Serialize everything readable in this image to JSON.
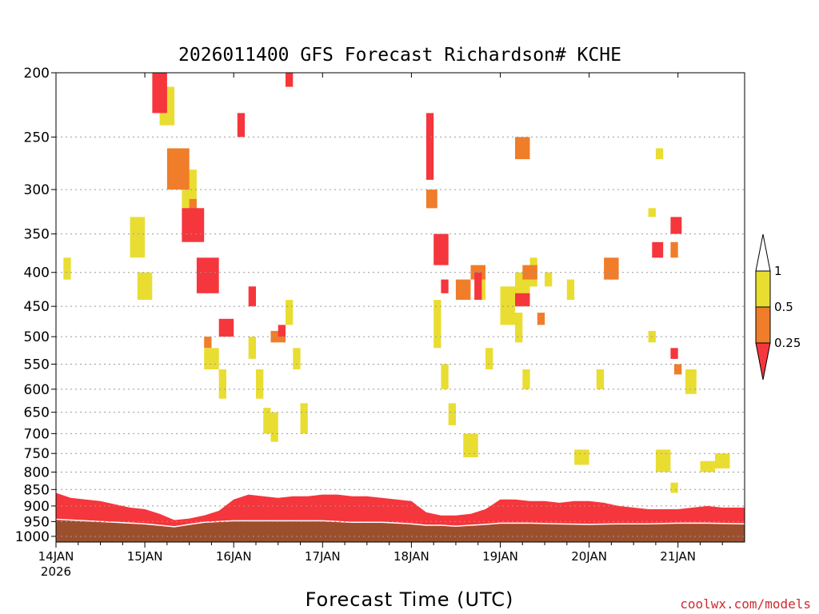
{
  "colors": {
    "ri_below_0_25": "#f5363c",
    "ri_0_25_to_0_5": "#f07d2a",
    "ri_0_5_to_1": "#e9dd32",
    "ri_above_1": "#ffffff",
    "ground": "#9c4f2c",
    "grid": "#999999"
  },
  "chart_data": {
    "type": "heatmap",
    "title": "2026011400 GFS Forecast Richardson# KCHE",
    "xlabel": "Forecast Time (UTC)",
    "x_ticks": [
      {
        "label": "14JAN",
        "sublabel": "2026",
        "hour": 0
      },
      {
        "label": "15JAN",
        "hour": 24
      },
      {
        "label": "16JAN",
        "hour": 48
      },
      {
        "label": "17JAN",
        "hour": 72
      },
      {
        "label": "18JAN",
        "hour": 96
      },
      {
        "label": "19JAN",
        "hour": 120
      },
      {
        "label": "20JAN",
        "hour": 144
      },
      {
        "label": "21JAN",
        "hour": 168
      }
    ],
    "xlim_hours": [
      0,
      186
    ],
    "y_ticks": [
      200,
      250,
      300,
      350,
      400,
      450,
      500,
      550,
      600,
      650,
      700,
      750,
      800,
      850,
      900,
      950,
      1000
    ],
    "y_unit": "hPa",
    "ylim": [
      200,
      1020
    ],
    "y_scale": "log",
    "grid": "dotted horizontal lines",
    "legend": {
      "position": "right",
      "levels": [
        "0.25",
        "0.5",
        "1"
      ]
    },
    "regions": [
      {
        "cls": "high",
        "from": [
          200,
          260
        ],
        "to": [
          230,
          170
        ]
      },
      {
        "cls": "high",
        "from": [
          250,
          290
        ],
        "to": [
          300,
          160
        ]
      },
      {
        "cls": "high",
        "from": [
          200,
          250
        ],
        "to": [
          280,
          240
        ]
      }
    ],
    "red_blocks": [
      [
        26,
        30,
        200,
        230
      ],
      [
        34,
        40,
        320,
        360
      ],
      [
        38,
        44,
        380,
        430
      ],
      [
        44,
        48,
        470,
        500
      ],
      [
        49,
        51,
        230,
        250
      ],
      [
        52,
        54,
        420,
        450
      ],
      [
        62,
        64,
        200,
        210
      ],
      [
        60,
        62,
        480,
        500
      ],
      [
        100,
        102,
        230,
        290
      ],
      [
        102,
        106,
        350,
        390
      ],
      [
        104,
        106,
        410,
        430
      ],
      [
        113,
        115,
        400,
        440
      ],
      [
        124,
        128,
        430,
        450
      ],
      [
        161,
        164,
        360,
        380
      ],
      [
        166,
        169,
        330,
        350
      ],
      [
        166,
        168,
        520,
        540
      ]
    ],
    "orange_blocks": [
      [
        30,
        36,
        260,
        300
      ],
      [
        36,
        38,
        310,
        350
      ],
      [
        40,
        42,
        500,
        520
      ],
      [
        58,
        62,
        490,
        510
      ],
      [
        100,
        103,
        300,
        320
      ],
      [
        108,
        112,
        410,
        440
      ],
      [
        112,
        116,
        390,
        410
      ],
      [
        124,
        128,
        250,
        270
      ],
      [
        126,
        130,
        390,
        410
      ],
      [
        148,
        152,
        380,
        410
      ],
      [
        130,
        132,
        460,
        480
      ],
      [
        167,
        169,
        550,
        570
      ],
      [
        166,
        168,
        360,
        380
      ]
    ],
    "yellow_blocks": [
      [
        2,
        4,
        380,
        410
      ],
      [
        20,
        24,
        330,
        380
      ],
      [
        22,
        26,
        400,
        440
      ],
      [
        28,
        32,
        210,
        240
      ],
      [
        34,
        38,
        280,
        320
      ],
      [
        40,
        44,
        520,
        560
      ],
      [
        44,
        46,
        560,
        620
      ],
      [
        52,
        54,
        500,
        540
      ],
      [
        54,
        56,
        560,
        620
      ],
      [
        56,
        58,
        640,
        700
      ],
      [
        58,
        60,
        650,
        720
      ],
      [
        62,
        64,
        440,
        480
      ],
      [
        64,
        66,
        520,
        560
      ],
      [
        66,
        68,
        630,
        700
      ],
      [
        102,
        104,
        440,
        520
      ],
      [
        104,
        106,
        550,
        600
      ],
      [
        106,
        108,
        630,
        680
      ],
      [
        110,
        114,
        700,
        760
      ],
      [
        114,
        116,
        400,
        440
      ],
      [
        116,
        118,
        520,
        560
      ],
      [
        120,
        124,
        420,
        480
      ],
      [
        124,
        128,
        400,
        450
      ],
      [
        124,
        126,
        460,
        510
      ],
      [
        128,
        130,
        380,
        420
      ],
      [
        126,
        128,
        560,
        600
      ],
      [
        132,
        134,
        400,
        420
      ],
      [
        138,
        140,
        410,
        440
      ],
      [
        140,
        144,
        740,
        780
      ],
      [
        146,
        148,
        560,
        600
      ],
      [
        160,
        162,
        490,
        510
      ],
      [
        162,
        166,
        740,
        800
      ],
      [
        166,
        168,
        830,
        860
      ],
      [
        170,
        173,
        560,
        610
      ],
      [
        174,
        178,
        770,
        800
      ],
      [
        178,
        182,
        750,
        790
      ],
      [
        162,
        164,
        260,
        270
      ],
      [
        160,
        162,
        320,
        330
      ]
    ],
    "boundary_layer_top_hpa": [
      [
        0,
        860
      ],
      [
        4,
        875
      ],
      [
        8,
        880
      ],
      [
        12,
        885
      ],
      [
        16,
        895
      ],
      [
        20,
        905
      ],
      [
        24,
        910
      ],
      [
        28,
        925
      ],
      [
        32,
        945
      ],
      [
        36,
        940
      ],
      [
        40,
        930
      ],
      [
        44,
        915
      ],
      [
        48,
        880
      ],
      [
        52,
        865
      ],
      [
        56,
        870
      ],
      [
        60,
        875
      ],
      [
        64,
        870
      ],
      [
        68,
        870
      ],
      [
        72,
        865
      ],
      [
        76,
        865
      ],
      [
        80,
        870
      ],
      [
        84,
        870
      ],
      [
        88,
        875
      ],
      [
        92,
        880
      ],
      [
        96,
        885
      ],
      [
        100,
        920
      ],
      [
        104,
        930
      ],
      [
        108,
        930
      ],
      [
        112,
        925
      ],
      [
        116,
        910
      ],
      [
        120,
        880
      ],
      [
        124,
        880
      ],
      [
        128,
        885
      ],
      [
        132,
        885
      ],
      [
        136,
        890
      ],
      [
        140,
        885
      ],
      [
        144,
        885
      ],
      [
        148,
        890
      ],
      [
        152,
        900
      ],
      [
        156,
        905
      ],
      [
        160,
        910
      ],
      [
        164,
        910
      ],
      [
        168,
        910
      ],
      [
        172,
        905
      ],
      [
        176,
        900
      ],
      [
        180,
        905
      ],
      [
        184,
        905
      ],
      [
        186,
        905
      ]
    ],
    "surface_pressure_hpa": [
      [
        0,
        945
      ],
      [
        8,
        950
      ],
      [
        16,
        955
      ],
      [
        24,
        960
      ],
      [
        28,
        965
      ],
      [
        32,
        970
      ],
      [
        36,
        962
      ],
      [
        40,
        955
      ],
      [
        48,
        950
      ],
      [
        56,
        950
      ],
      [
        64,
        950
      ],
      [
        72,
        950
      ],
      [
        80,
        955
      ],
      [
        88,
        955
      ],
      [
        96,
        960
      ],
      [
        100,
        965
      ],
      [
        104,
        965
      ],
      [
        108,
        968
      ],
      [
        112,
        965
      ],
      [
        116,
        962
      ],
      [
        120,
        958
      ],
      [
        128,
        958
      ],
      [
        136,
        960
      ],
      [
        144,
        962
      ],
      [
        152,
        960
      ],
      [
        160,
        960
      ],
      [
        168,
        958
      ],
      [
        176,
        958
      ],
      [
        186,
        960
      ]
    ]
  },
  "credit": "coolwx.com/models"
}
